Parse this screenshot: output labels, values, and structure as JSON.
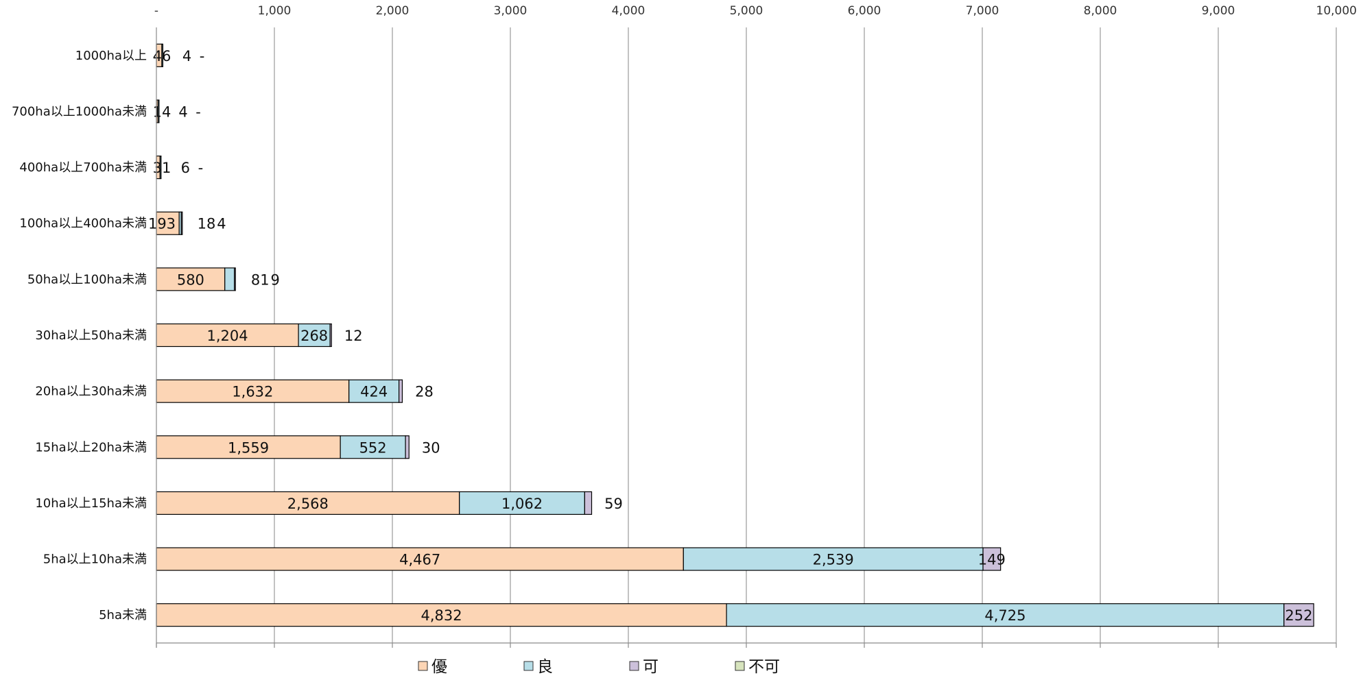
{
  "chart_data": {
    "type": "bar",
    "orientation": "horizontal",
    "stacked": true,
    "title": "",
    "xlabel": "",
    "ylabel": "",
    "xlim": [
      0,
      10000
    ],
    "x_ticks": [
      0,
      1000,
      2000,
      3000,
      4000,
      5000,
      6000,
      7000,
      8000,
      9000,
      10000
    ],
    "x_tick_labels": [
      "-",
      "1,000",
      "2,000",
      "3,000",
      "4,000",
      "5,000",
      "6,000",
      "7,000",
      "8,000",
      "9,000",
      "10,000"
    ],
    "x_axis_position": "top",
    "grid": true,
    "legend_position": "bottom",
    "categories": [
      "1000ha以上",
      "700ha以上1000ha未満",
      "400ha以上700ha未満",
      "100ha以上400ha未満",
      "50ha以上100ha未満",
      "30ha以上50ha未満",
      "20ha以上30ha未満",
      "15ha以上20ha未満",
      "10ha以上15ha未満",
      "5ha以上10ha未満",
      "5ha未満"
    ],
    "series": [
      {
        "name": "優",
        "color": "#FCD5B5",
        "values": [
          46,
          14,
          31,
          193,
          580,
          1204,
          1632,
          1559,
          2568,
          4467,
          4832
        ],
        "labels": [
          "46",
          "14",
          "31",
          "193",
          "580",
          "1,204",
          "1,632",
          "1,559",
          "2,568",
          "4,467",
          "4,832"
        ]
      },
      {
        "name": "良",
        "color": "#B7DEE8",
        "values": [
          4,
          4,
          6,
          18,
          81,
          268,
          424,
          552,
          1062,
          2539,
          4725
        ],
        "labels": [
          "4",
          "4",
          "6",
          "18",
          "81",
          "268",
          "424",
          "552",
          "1,062",
          "2,539",
          "4,725"
        ]
      },
      {
        "name": "可",
        "color": "#CCC0DA",
        "values": [
          0,
          0,
          0,
          4,
          9,
          12,
          28,
          30,
          59,
          149,
          252
        ],
        "labels": [
          "-",
          "-",
          "-",
          "4",
          "9",
          "12",
          "28",
          "30",
          "59",
          "149",
          "252"
        ]
      },
      {
        "name": "不可",
        "color": "#D7E4BD",
        "values": [
          0,
          0,
          0,
          0,
          0,
          0,
          0,
          0,
          0,
          0,
          0
        ],
        "labels": [
          "",
          "",
          "",
          "",
          "",
          "",
          "",
          "",
          "",
          "",
          ""
        ]
      }
    ]
  }
}
